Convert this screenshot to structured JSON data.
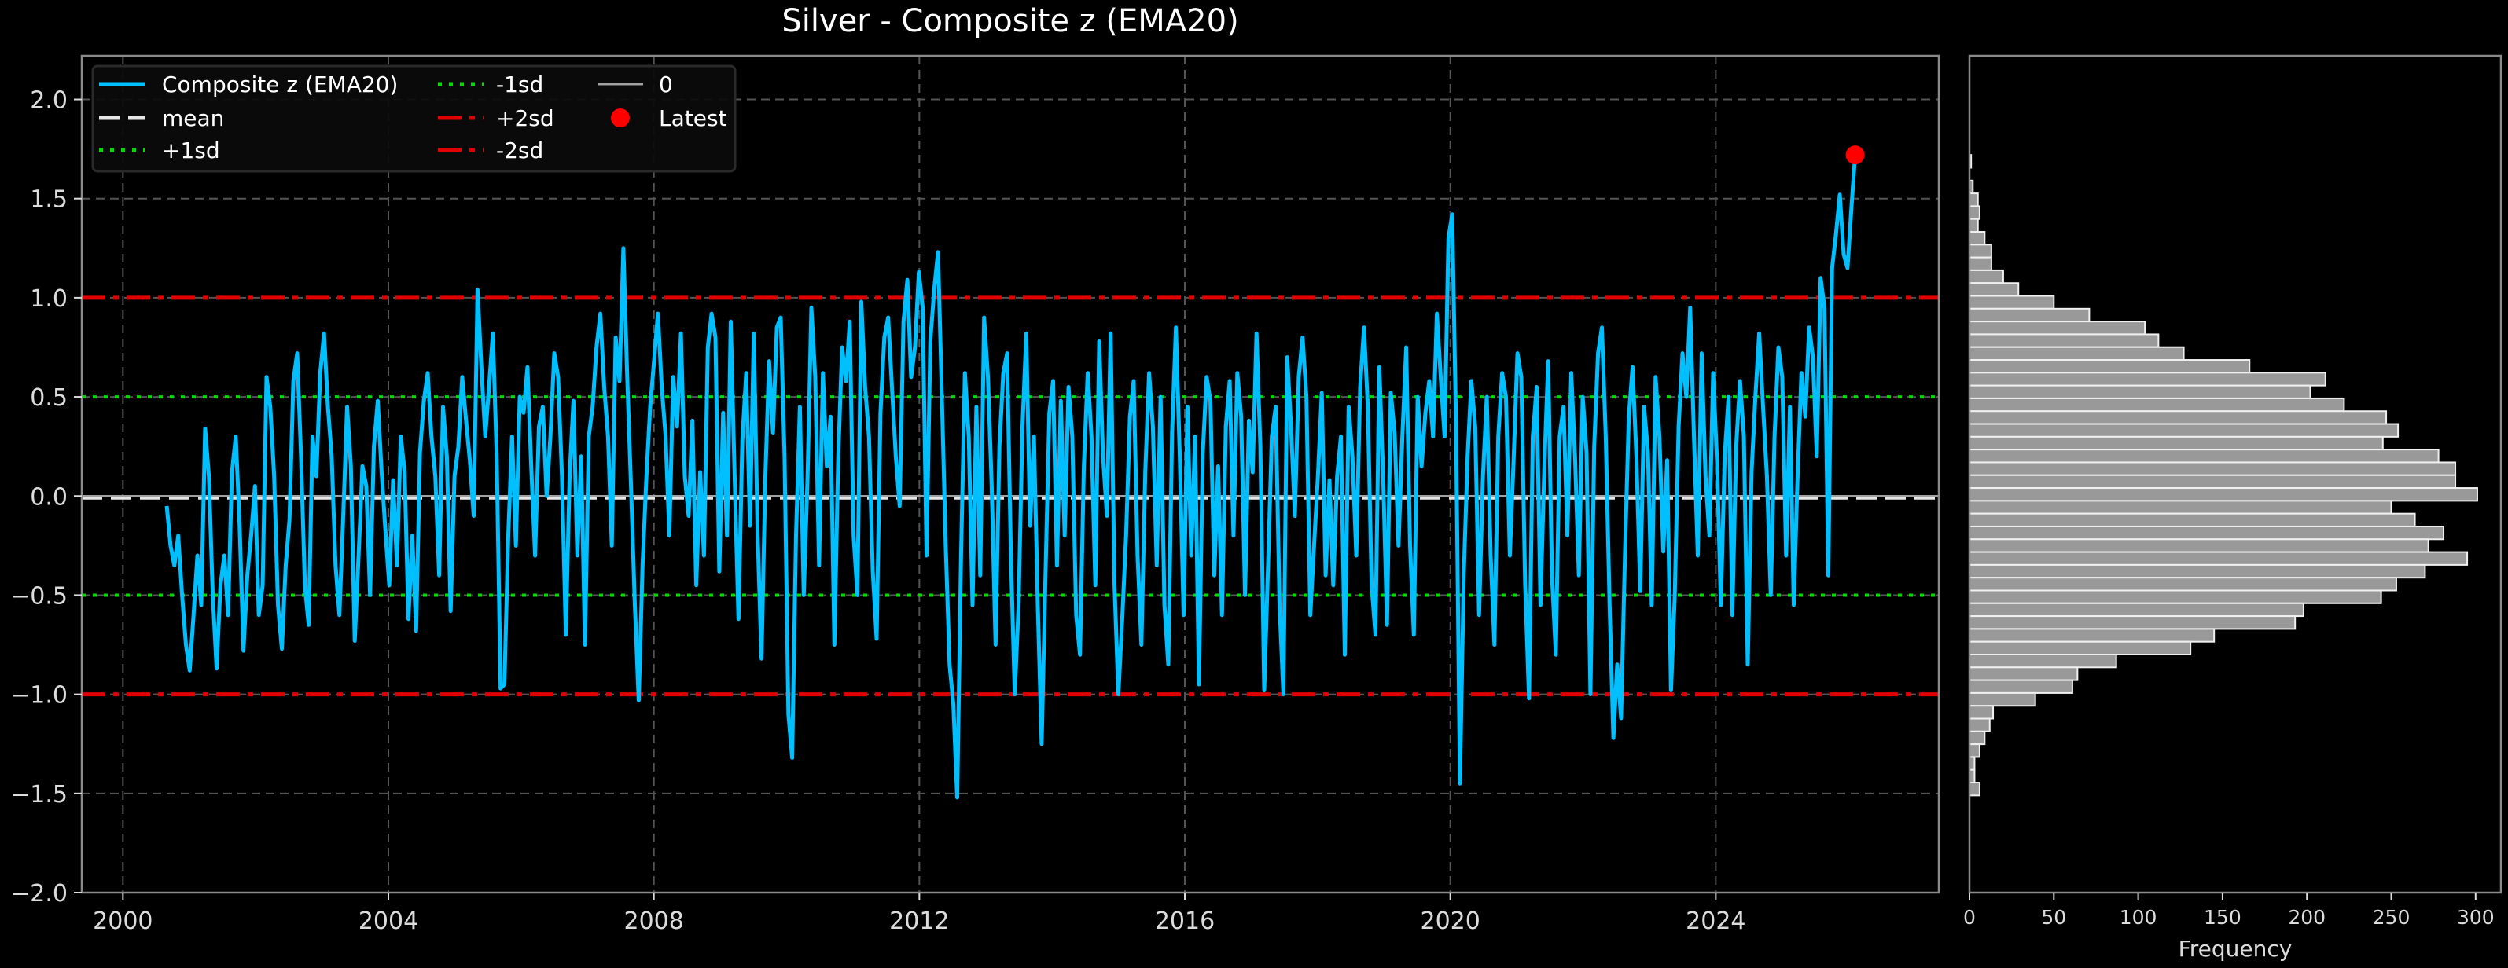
{
  "chart_data": [
    {
      "type": "line",
      "title": "Silver - Composite z (EMA20)",
      "xlabel": "",
      "ylabel": "",
      "xlim": [
        1999.38,
        2027.36
      ],
      "ylim": [
        -2.0,
        2.22
      ],
      "x_ticks": [
        2000,
        2004,
        2008,
        2012,
        2016,
        2020,
        2024
      ],
      "y_ticks": [
        -2.0,
        -1.5,
        -1.0,
        -0.5,
        0.0,
        0.5,
        1.0,
        1.5,
        2.0
      ],
      "grid": true,
      "legend_position": "upper left",
      "legend_columns": 3,
      "series": [
        {
          "name": "Composite z (EMA20)",
          "color": "#00bfff",
          "style": "solid",
          "x_start": 2000.66,
          "x_end": 2026.1,
          "values": [
            -0.05,
            -0.25,
            -0.35,
            -0.2,
            -0.5,
            -0.75,
            -0.88,
            -0.6,
            -0.3,
            -0.55,
            0.34,
            0.1,
            -0.5,
            -0.87,
            -0.45,
            -0.3,
            -0.6,
            0.12,
            0.3,
            -0.15,
            -0.78,
            -0.4,
            -0.2,
            0.05,
            -0.6,
            -0.45,
            0.6,
            0.45,
            0.1,
            -0.55,
            -0.77,
            -0.35,
            -0.12,
            0.58,
            0.72,
            0.2,
            -0.45,
            -0.65,
            0.3,
            0.1,
            0.62,
            0.82,
            0.45,
            0.2,
            -0.35,
            -0.6,
            -0.1,
            0.45,
            0.15,
            -0.73,
            -0.3,
            0.15,
            0.05,
            -0.5,
            0.25,
            0.48,
            0.12,
            -0.18,
            -0.45,
            0.08,
            -0.35,
            0.3,
            0.12,
            -0.62,
            -0.2,
            -0.68,
            0.22,
            0.48,
            0.62,
            0.3,
            0.1,
            -0.4,
            0.45,
            0.2,
            -0.58,
            0.1,
            0.25,
            0.6,
            0.38,
            0.18,
            -0.1,
            1.04,
            0.65,
            0.3,
            0.55,
            0.82,
            0.2,
            -0.97,
            -0.95,
            -0.2,
            0.3,
            -0.25,
            0.5,
            0.42,
            0.65,
            0.15,
            -0.3,
            0.35,
            0.45,
            0.0,
            0.3,
            0.72,
            0.6,
            0.1,
            -0.7,
            0.1,
            0.48,
            -0.3,
            0.2,
            -0.75,
            0.3,
            0.45,
            0.75,
            0.92,
            0.55,
            0.3,
            -0.25,
            0.8,
            0.58,
            1.25,
            0.6,
            0.05,
            -0.55,
            -1.03,
            -0.35,
            0.1,
            0.45,
            0.68,
            0.92,
            0.55,
            0.3,
            -0.2,
            0.6,
            0.35,
            0.82,
            0.1,
            -0.1,
            0.38,
            -0.45,
            0.12,
            -0.3,
            0.75,
            0.92,
            0.8,
            -0.38,
            0.42,
            -0.2,
            0.88,
            0.1,
            -0.62,
            0.28,
            0.62,
            -0.15,
            0.82,
            -0.2,
            -0.82,
            0.1,
            0.68,
            0.32,
            0.85,
            0.9,
            0.2,
            -1.1,
            -1.32,
            -0.2,
            0.45,
            -0.5,
            0.1,
            0.95,
            0.6,
            -0.35,
            0.62,
            0.15,
            0.4,
            -0.75,
            0.2,
            0.75,
            0.58,
            0.88,
            -0.2,
            -0.5,
            0.98,
            0.55,
            0.3,
            -0.38,
            -0.72,
            0.42,
            0.8,
            0.9,
            0.55,
            0.2,
            -0.05,
            0.88,
            1.09,
            0.6,
            0.75,
            1.13,
            0.95,
            -0.3,
            0.78,
            1.04,
            1.23,
            0.5,
            -0.25,
            -0.85,
            -1.05,
            -1.52,
            -0.3,
            0.62,
            0.3,
            -0.55,
            0.45,
            -0.4,
            0.9,
            0.6,
            0.05,
            -0.75,
            0.25,
            0.62,
            0.72,
            -0.3,
            -1.0,
            -0.55,
            0.35,
            0.82,
            -0.15,
            0.3,
            -0.55,
            -1.25,
            -0.4,
            0.42,
            0.58,
            -0.35,
            0.48,
            -0.2,
            0.55,
            0.3,
            -0.6,
            -0.8,
            0.15,
            0.62,
            0.3,
            -0.45,
            0.78,
            0.2,
            -0.1,
            0.82,
            -0.45,
            -1.0,
            -0.62,
            -0.2,
            0.4,
            0.58,
            -0.3,
            -0.75,
            0.12,
            0.62,
            0.35,
            -0.35,
            0.5,
            -0.55,
            -0.85,
            0.32,
            0.85,
            0.2,
            -0.6,
            0.45,
            -0.3,
            0.3,
            -0.95,
            0.22,
            0.6,
            0.48,
            -0.4,
            0.15,
            -0.6,
            0.35,
            0.58,
            -0.2,
            0.62,
            0.4,
            -0.5,
            0.38,
            0.12,
            0.82,
            0.25,
            -0.98,
            -0.35,
            0.3,
            0.45,
            -0.55,
            -1.0,
            0.7,
            0.35,
            -0.1,
            0.6,
            0.8,
            0.5,
            -0.6,
            -0.25,
            0.1,
            0.52,
            -0.4,
            0.08,
            -0.45,
            0.1,
            0.3,
            -0.8,
            0.45,
            0.2,
            -0.3,
            0.55,
            0.85,
            0.45,
            -0.45,
            -0.7,
            0.65,
            0.1,
            -0.65,
            0.52,
            0.32,
            -0.25,
            0.3,
            0.75,
            -0.25,
            -0.7,
            0.5,
            0.15,
            0.42,
            0.58,
            0.3,
            0.92,
            0.6,
            0.3,
            1.3,
            1.42,
            0.35,
            -1.45,
            -0.4,
            0.2,
            0.58,
            0.35,
            -0.6,
            0.1,
            0.5,
            -0.3,
            -0.75,
            0.3,
            0.62,
            0.5,
            -0.3,
            0.18,
            0.72,
            0.6,
            -0.45,
            -1.02,
            0.3,
            0.55,
            -0.55,
            0.15,
            0.68,
            -0.4,
            -0.8,
            0.3,
            0.45,
            -0.2,
            0.62,
            0.2,
            -0.4,
            0.5,
            0.22,
            -1.0,
            0.25,
            0.72,
            0.85,
            0.3,
            -0.55,
            -1.22,
            -0.85,
            -1.12,
            -0.3,
            0.4,
            0.65,
            0.2,
            -0.48,
            0.45,
            0.22,
            -0.55,
            0.6,
            0.3,
            -0.28,
            0.18,
            -0.98,
            -0.5,
            0.35,
            0.72,
            0.5,
            0.95,
            0.3,
            -0.3,
            0.72,
            0.1,
            -0.2,
            0.62,
            0.18,
            -0.55,
            0.2,
            0.5,
            -0.6,
            0.25,
            0.58,
            0.3,
            -0.85,
            0.12,
            0.5,
            0.82,
            0.45,
            0.1,
            -0.5,
            0.3,
            0.75,
            0.6,
            -0.3,
            0.45,
            -0.55,
            0.1,
            0.62,
            0.4,
            0.85,
            0.7,
            0.2,
            1.1,
            0.95,
            -0.4,
            1.15,
            1.32,
            1.52,
            1.22,
            1.15,
            1.45,
            1.72
          ]
        },
        {
          "name": "mean",
          "color": "#e6e6e6",
          "style": "dashed",
          "y": -0.01
        },
        {
          "name": "+1sd",
          "color": "#00dd00",
          "style": "dotted",
          "y": 0.5
        },
        {
          "name": "-1sd",
          "color": "#00dd00",
          "style": "dotted",
          "y": -0.5
        },
        {
          "name": "+2sd",
          "color": "#e00000",
          "style": "dashdot",
          "y": 1.0
        },
        {
          "name": "-2sd",
          "color": "#e00000",
          "style": "dashdot",
          "y": -1.0
        },
        {
          "name": "0",
          "color": "#a0a0a0",
          "style": "solid",
          "y": 0.0
        },
        {
          "name": "Latest",
          "color": "#ff0000",
          "style": "marker",
          "x": 2026.1,
          "y": 1.72
        }
      ]
    },
    {
      "type": "bar",
      "orientation": "horizontal",
      "title": "",
      "xlabel": "Frequency",
      "ylabel": "",
      "xlim": [
        0,
        315
      ],
      "x_ticks": [
        0,
        50,
        100,
        150,
        200,
        250,
        300
      ],
      "bin_top": 1.72,
      "bin_width": 0.0646,
      "bar_color": "#999999",
      "bar_edge_color": "#f0f0f0",
      "values_top_to_bottom": [
        1,
        0,
        2,
        5,
        6,
        5,
        9,
        13,
        13,
        20,
        29,
        50,
        71,
        104,
        112,
        127,
        166,
        211,
        202,
        222,
        247,
        254,
        245,
        278,
        288,
        288,
        301,
        250,
        264,
        281,
        272,
        295,
        270,
        253,
        244,
        198,
        193,
        145,
        131,
        87,
        64,
        61,
        39,
        14,
        12,
        9,
        6,
        3,
        3,
        6
      ]
    }
  ],
  "figure": {
    "title": "Silver - Composite z (EMA20)",
    "background": "#000000"
  },
  "legend": {
    "items": [
      {
        "label": "Composite z (EMA20)",
        "color": "#00bfff",
        "style": "solid"
      },
      {
        "label": "mean",
        "color": "#e6e6e6",
        "style": "dashed"
      },
      {
        "label": "+1sd",
        "color": "#00dd00",
        "style": "dotted"
      },
      {
        "label": "-1sd",
        "color": "#00dd00",
        "style": "dotted"
      },
      {
        "label": "+2sd",
        "color": "#e00000",
        "style": "dashdot"
      },
      {
        "label": "-2sd",
        "color": "#e00000",
        "style": "dashdot"
      },
      {
        "label": "0",
        "color": "#a0a0a0",
        "style": "solid"
      },
      {
        "label": "Latest",
        "color": "#ff0000",
        "style": "marker"
      }
    ]
  },
  "axes": {
    "main": {
      "x_tick_labels": [
        "2000",
        "2004",
        "2008",
        "2012",
        "2016",
        "2020",
        "2024"
      ],
      "y_tick_labels": [
        "−2.0",
        "−1.5",
        "−1.0",
        "−0.5",
        "0.0",
        "0.5",
        "1.0",
        "1.5",
        "2.0"
      ]
    },
    "hist": {
      "x_tick_labels": [
        "0",
        "50",
        "100",
        "150",
        "200",
        "250",
        "300"
      ],
      "xlabel": "Frequency"
    }
  }
}
